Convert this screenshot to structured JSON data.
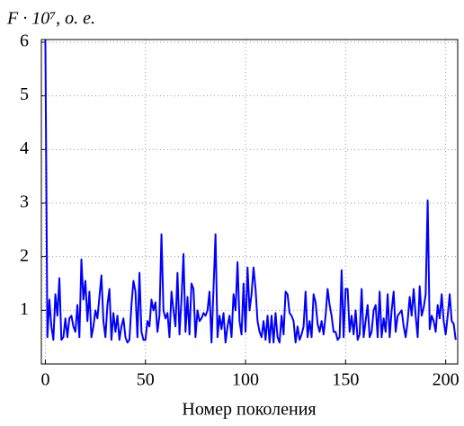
{
  "chart_data": {
    "type": "line",
    "title": "F · 10⁷, о. е.",
    "x_label": "Номер поколения",
    "xlim": [
      -2,
      206
    ],
    "xticks": [
      0,
      50,
      100,
      150,
      200
    ],
    "ylim": [
      0,
      6.05
    ],
    "yticks": [
      1,
      2,
      3,
      4,
      5,
      6
    ],
    "grid": true,
    "x": [
      0,
      1,
      2,
      3,
      4,
      5,
      6,
      7,
      8,
      9,
      10,
      11,
      12,
      13,
      14,
      15,
      16,
      17,
      18,
      19,
      20,
      21,
      22,
      23,
      24,
      25,
      26,
      27,
      28,
      29,
      30,
      31,
      32,
      33,
      34,
      35,
      36,
      37,
      38,
      39,
      40,
      41,
      42,
      43,
      44,
      45,
      46,
      47,
      48,
      49,
      50,
      51,
      52,
      53,
      54,
      55,
      56,
      57,
      58,
      59,
      60,
      61,
      62,
      63,
      64,
      65,
      66,
      67,
      68,
      69,
      70,
      71,
      72,
      73,
      74,
      75,
      76,
      77,
      78,
      79,
      80,
      81,
      82,
      83,
      84,
      85,
      86,
      87,
      88,
      89,
      90,
      91,
      92,
      93,
      94,
      95,
      96,
      97,
      98,
      99,
      100,
      101,
      102,
      103,
      104,
      105,
      106,
      107,
      108,
      109,
      110,
      111,
      112,
      113,
      114,
      115,
      116,
      117,
      118,
      119,
      120,
      121,
      122,
      123,
      124,
      125,
      126,
      127,
      128,
      129,
      130,
      131,
      132,
      133,
      134,
      135,
      136,
      137,
      138,
      139,
      140,
      141,
      142,
      143,
      144,
      145,
      146,
      147,
      148,
      149,
      150,
      151,
      152,
      153,
      154,
      155,
      156,
      157,
      158,
      159,
      160,
      161,
      162,
      163,
      164,
      165,
      166,
      167,
      168,
      169,
      170,
      171,
      172,
      173,
      174,
      175,
      176,
      177,
      178,
      179,
      180,
      181,
      182,
      183,
      184,
      185,
      186,
      187,
      188,
      189,
      190,
      191,
      192,
      193,
      194,
      195,
      196,
      197,
      198,
      199,
      200,
      201,
      202,
      203,
      204,
      205
    ],
    "series": [
      {
        "color": "#0000ff",
        "values": [
          6.05,
          0.5,
          1.2,
          0.7,
          0.45,
          1.3,
          0.9,
          1.6,
          0.45,
          0.5,
          0.85,
          0.5,
          0.85,
          0.9,
          0.7,
          0.6,
          1.1,
          0.5,
          1.95,
          1.2,
          1.55,
          0.8,
          1.35,
          0.5,
          0.7,
          1.0,
          0.85,
          1.25,
          1.65,
          0.8,
          0.5,
          1.1,
          1.4,
          0.45,
          0.95,
          0.6,
          0.9,
          0.45,
          0.7,
          0.85,
          0.5,
          0.4,
          0.45,
          1.1,
          1.55,
          1.35,
          0.5,
          1.7,
          0.6,
          0.45,
          0.45,
          0.8,
          0.7,
          1.2,
          1.0,
          1.15,
          0.6,
          0.9,
          2.42,
          1.0,
          0.85,
          0.95,
          0.5,
          1.35,
          1.0,
          0.7,
          1.7,
          0.55,
          1.2,
          2.05,
          0.6,
          1.25,
          0.55,
          1.5,
          1.4,
          0.5,
          1.0,
          0.8,
          0.85,
          0.95,
          0.9,
          1.0,
          1.35,
          0.4,
          1.4,
          2.42,
          0.5,
          0.9,
          0.65,
          0.95,
          0.4,
          0.7,
          0.9,
          0.5,
          1.3,
          1.0,
          1.9,
          0.8,
          0.55,
          1.5,
          0.6,
          1.8,
          1.0,
          1.3,
          1.8,
          1.4,
          0.8,
          0.6,
          0.5,
          0.8,
          0.45,
          0.9,
          0.4,
          0.9,
          0.4,
          0.95,
          0.5,
          0.4,
          0.9,
          0.55,
          1.35,
          1.3,
          0.95,
          0.9,
          0.8,
          0.4,
          0.7,
          0.45,
          0.55,
          0.7,
          1.35,
          0.5,
          0.8,
          0.5,
          1.3,
          1.15,
          0.75,
          0.6,
          0.8,
          0.55,
          0.9,
          1.4,
          1.1,
          0.9,
          0.6,
          0.6,
          0.45,
          0.5,
          1.75,
          0.5,
          1.4,
          1.4,
          0.6,
          0.9,
          0.55,
          1.0,
          0.45,
          0.55,
          1.4,
          0.5,
          0.8,
          1.1,
          0.5,
          0.6,
          1.0,
          1.1,
          0.5,
          1.35,
          0.5,
          0.85,
          0.6,
          1.3,
          0.5,
          1.0,
          1.35,
          0.6,
          0.9,
          0.95,
          1.0,
          0.7,
          0.5,
          0.8,
          1.25,
          0.9,
          1.4,
          0.9,
          0.5,
          1.45,
          0.9,
          1.05,
          1.3,
          3.05,
          0.65,
          0.9,
          0.8,
          0.6,
          1.1,
          0.85,
          1.3,
          0.8,
          0.55,
          0.9,
          1.3,
          0.8,
          0.75,
          0.45
        ]
      }
    ]
  }
}
